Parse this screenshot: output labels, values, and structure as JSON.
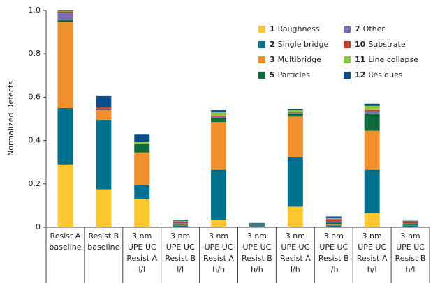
{
  "chart_data": {
    "type": "stacked-bar",
    "y_label": "Normalized Defects",
    "categories": [
      [
        "Resist A",
        "baseline"
      ],
      [
        "Resist B",
        "baseline"
      ],
      [
        "3 nm",
        "UPE UC",
        "Resist A",
        "l/l"
      ],
      [
        "3 nm",
        "UPE UC",
        "Resist B",
        "l/l"
      ],
      [
        "3 nm",
        "UPE UC",
        "Resist A",
        "h/h"
      ],
      [
        "3 nm",
        "UPE UC",
        "Resist B",
        "h/h"
      ],
      [
        "3 nm",
        "UPE UC",
        "Resist A",
        "l/h"
      ],
      [
        "3 nm",
        "UPE UC",
        "Resist B",
        "l/h"
      ],
      [
        "3 nm",
        "UPE UC",
        "Resist A",
        "h/l"
      ],
      [
        "3 nm",
        "UPE UC",
        "Resist B",
        "h/l"
      ]
    ],
    "series": [
      {
        "key": "1",
        "name": "Roughness",
        "color": "#fdc82f",
        "values": [
          0.29,
          0.175,
          0.13,
          0.003,
          0.035,
          0.002,
          0.095,
          0.003,
          0.065,
          0.002
        ]
      },
      {
        "key": "2",
        "name": "Single bridge",
        "color": "#00718f",
        "values": [
          0.26,
          0.32,
          0.065,
          0.005,
          0.23,
          0.004,
          0.23,
          0.005,
          0.2,
          0.006
        ]
      },
      {
        "key": "3",
        "name": "Multibridge",
        "color": "#f18f2b",
        "values": [
          0.395,
          0.045,
          0.15,
          0.003,
          0.22,
          0.001,
          0.185,
          0.004,
          0.18,
          0.002
        ]
      },
      {
        "key": "5",
        "name": "Particles",
        "color": "#0f6b3a",
        "values": [
          0.01,
          0.003,
          0.04,
          0.006,
          0.02,
          0.005,
          0.015,
          0.01,
          0.08,
          0.004
        ]
      },
      {
        "key": "7",
        "name": "Other",
        "color": "#7b6fb0",
        "values": [
          0.035,
          0.005,
          0,
          0.002,
          0.005,
          0.001,
          0.002,
          0.004,
          0.01,
          0.003
        ]
      },
      {
        "key": "10",
        "name": "Substrate",
        "color": "#c0392b",
        "values": [
          0.005,
          0.005,
          0,
          0.008,
          0.005,
          0.002,
          0.003,
          0.012,
          0.005,
          0.008
        ]
      },
      {
        "key": "11",
        "name": "Line collapse",
        "color": "#8cc63f",
        "values": [
          0.003,
          0.002,
          0.01,
          0.003,
          0.015,
          0.002,
          0.01,
          0.004,
          0.02,
          0.002
        ]
      },
      {
        "key": "12",
        "name": "Residues",
        "color": "#0b4f8a",
        "values": [
          0.002,
          0.05,
          0.035,
          0.005,
          0.01,
          0.003,
          0.005,
          0.008,
          0.01,
          0.003
        ]
      }
    ],
    "ylim": [
      0,
      1
    ],
    "yticks": [
      0,
      0.2,
      0.4,
      0.6,
      0.8,
      {
        "value": 1,
        "label": "1.0"
      }
    ],
    "legend": "upper right"
  }
}
